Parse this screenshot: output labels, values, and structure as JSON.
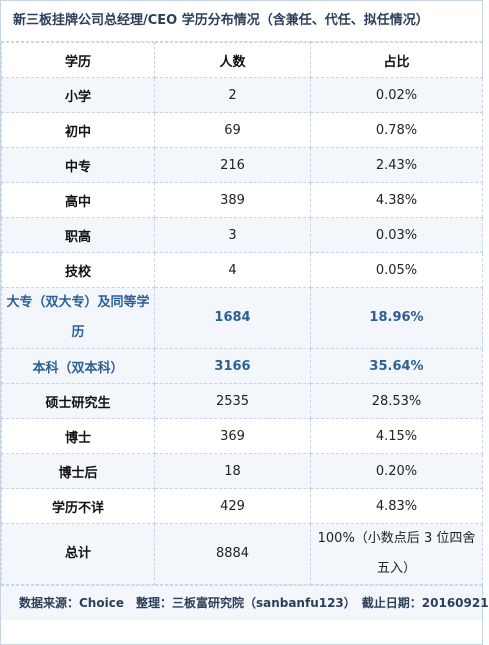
{
  "title": "新三板挂牌公司总经理/CEO 学历分布情况（含兼任、代任、拟任情况）",
  "headers": [
    "学历",
    "人数",
    "占比"
  ],
  "rows": [
    {
      "label": "小学",
      "count": "2",
      "pct": "0.02%"
    },
    {
      "label": "初中",
      "count": "69",
      "pct": "0.78%"
    },
    {
      "label": "中专",
      "count": "216",
      "pct": "2.43%"
    },
    {
      "label": "高中",
      "count": "389",
      "pct": "4.38%"
    },
    {
      "label": "职高",
      "count": "3",
      "pct": "0.03%"
    },
    {
      "label": "技校",
      "count": "4",
      "pct": "0.05%"
    },
    {
      "label": "大专（双大专）及同等学历",
      "count": "1684",
      "pct": "18.96%"
    },
    {
      "label": "本科（双本科）",
      "count": "3166",
      "pct": "35.64%"
    },
    {
      "label": "硕士研究生",
      "count": "2535",
      "pct": "28.53%"
    },
    {
      "label": "博士",
      "count": "369",
      "pct": "4.15%"
    },
    {
      "label": "博士后",
      "count": "18",
      "pct": "0.20%"
    },
    {
      "label": "学历不详",
      "count": "429",
      "pct": "4.83%"
    },
    {
      "label": "总计",
      "count": "8884",
      "pct": "100%（小数点后 3 位四舍五入）"
    }
  ],
  "footer": "数据来源：Choice　整理：三板富研究院（sanbanfu123）　截止日期：20160921",
  "colors": {
    "accent": "#2d5f96",
    "border": "#c7d4e3",
    "stripe": "#f3f7fb"
  }
}
